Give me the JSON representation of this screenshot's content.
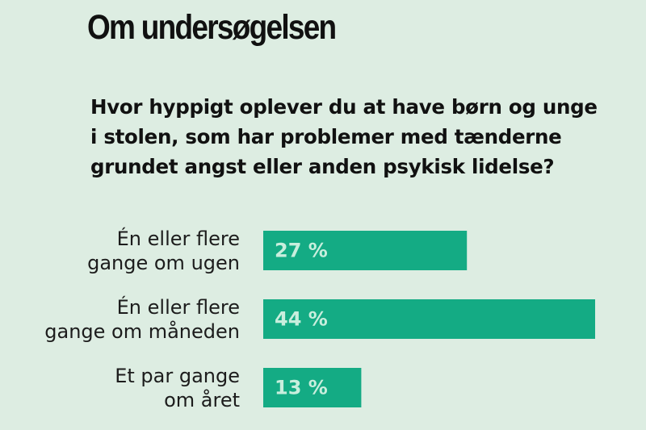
{
  "title": "Om undersøgelsen",
  "question_lines": [
    "Hvor hyppigt oplever du at have børn og unge",
    "i stolen, som har problemer med tænderne",
    "grundet angst eller anden psykisk lidelse?"
  ],
  "colors": {
    "background": "#ddede2",
    "bar": "#14ab84",
    "value_text": "#c8eedd",
    "text": "#111111"
  },
  "chart_data": {
    "type": "bar",
    "orientation": "horizontal",
    "categories": [
      [
        "Én eller flere",
        "gange om ugen"
      ],
      [
        "Én eller flere",
        "gange om måneden"
      ],
      [
        "Et par gange",
        "om året"
      ]
    ],
    "values": [
      27,
      44,
      13
    ],
    "value_labels": [
      "27 %",
      "44 %",
      "13 %"
    ],
    "unit": "%",
    "xlim": [
      0,
      44
    ],
    "grid": false,
    "legend": "none"
  }
}
